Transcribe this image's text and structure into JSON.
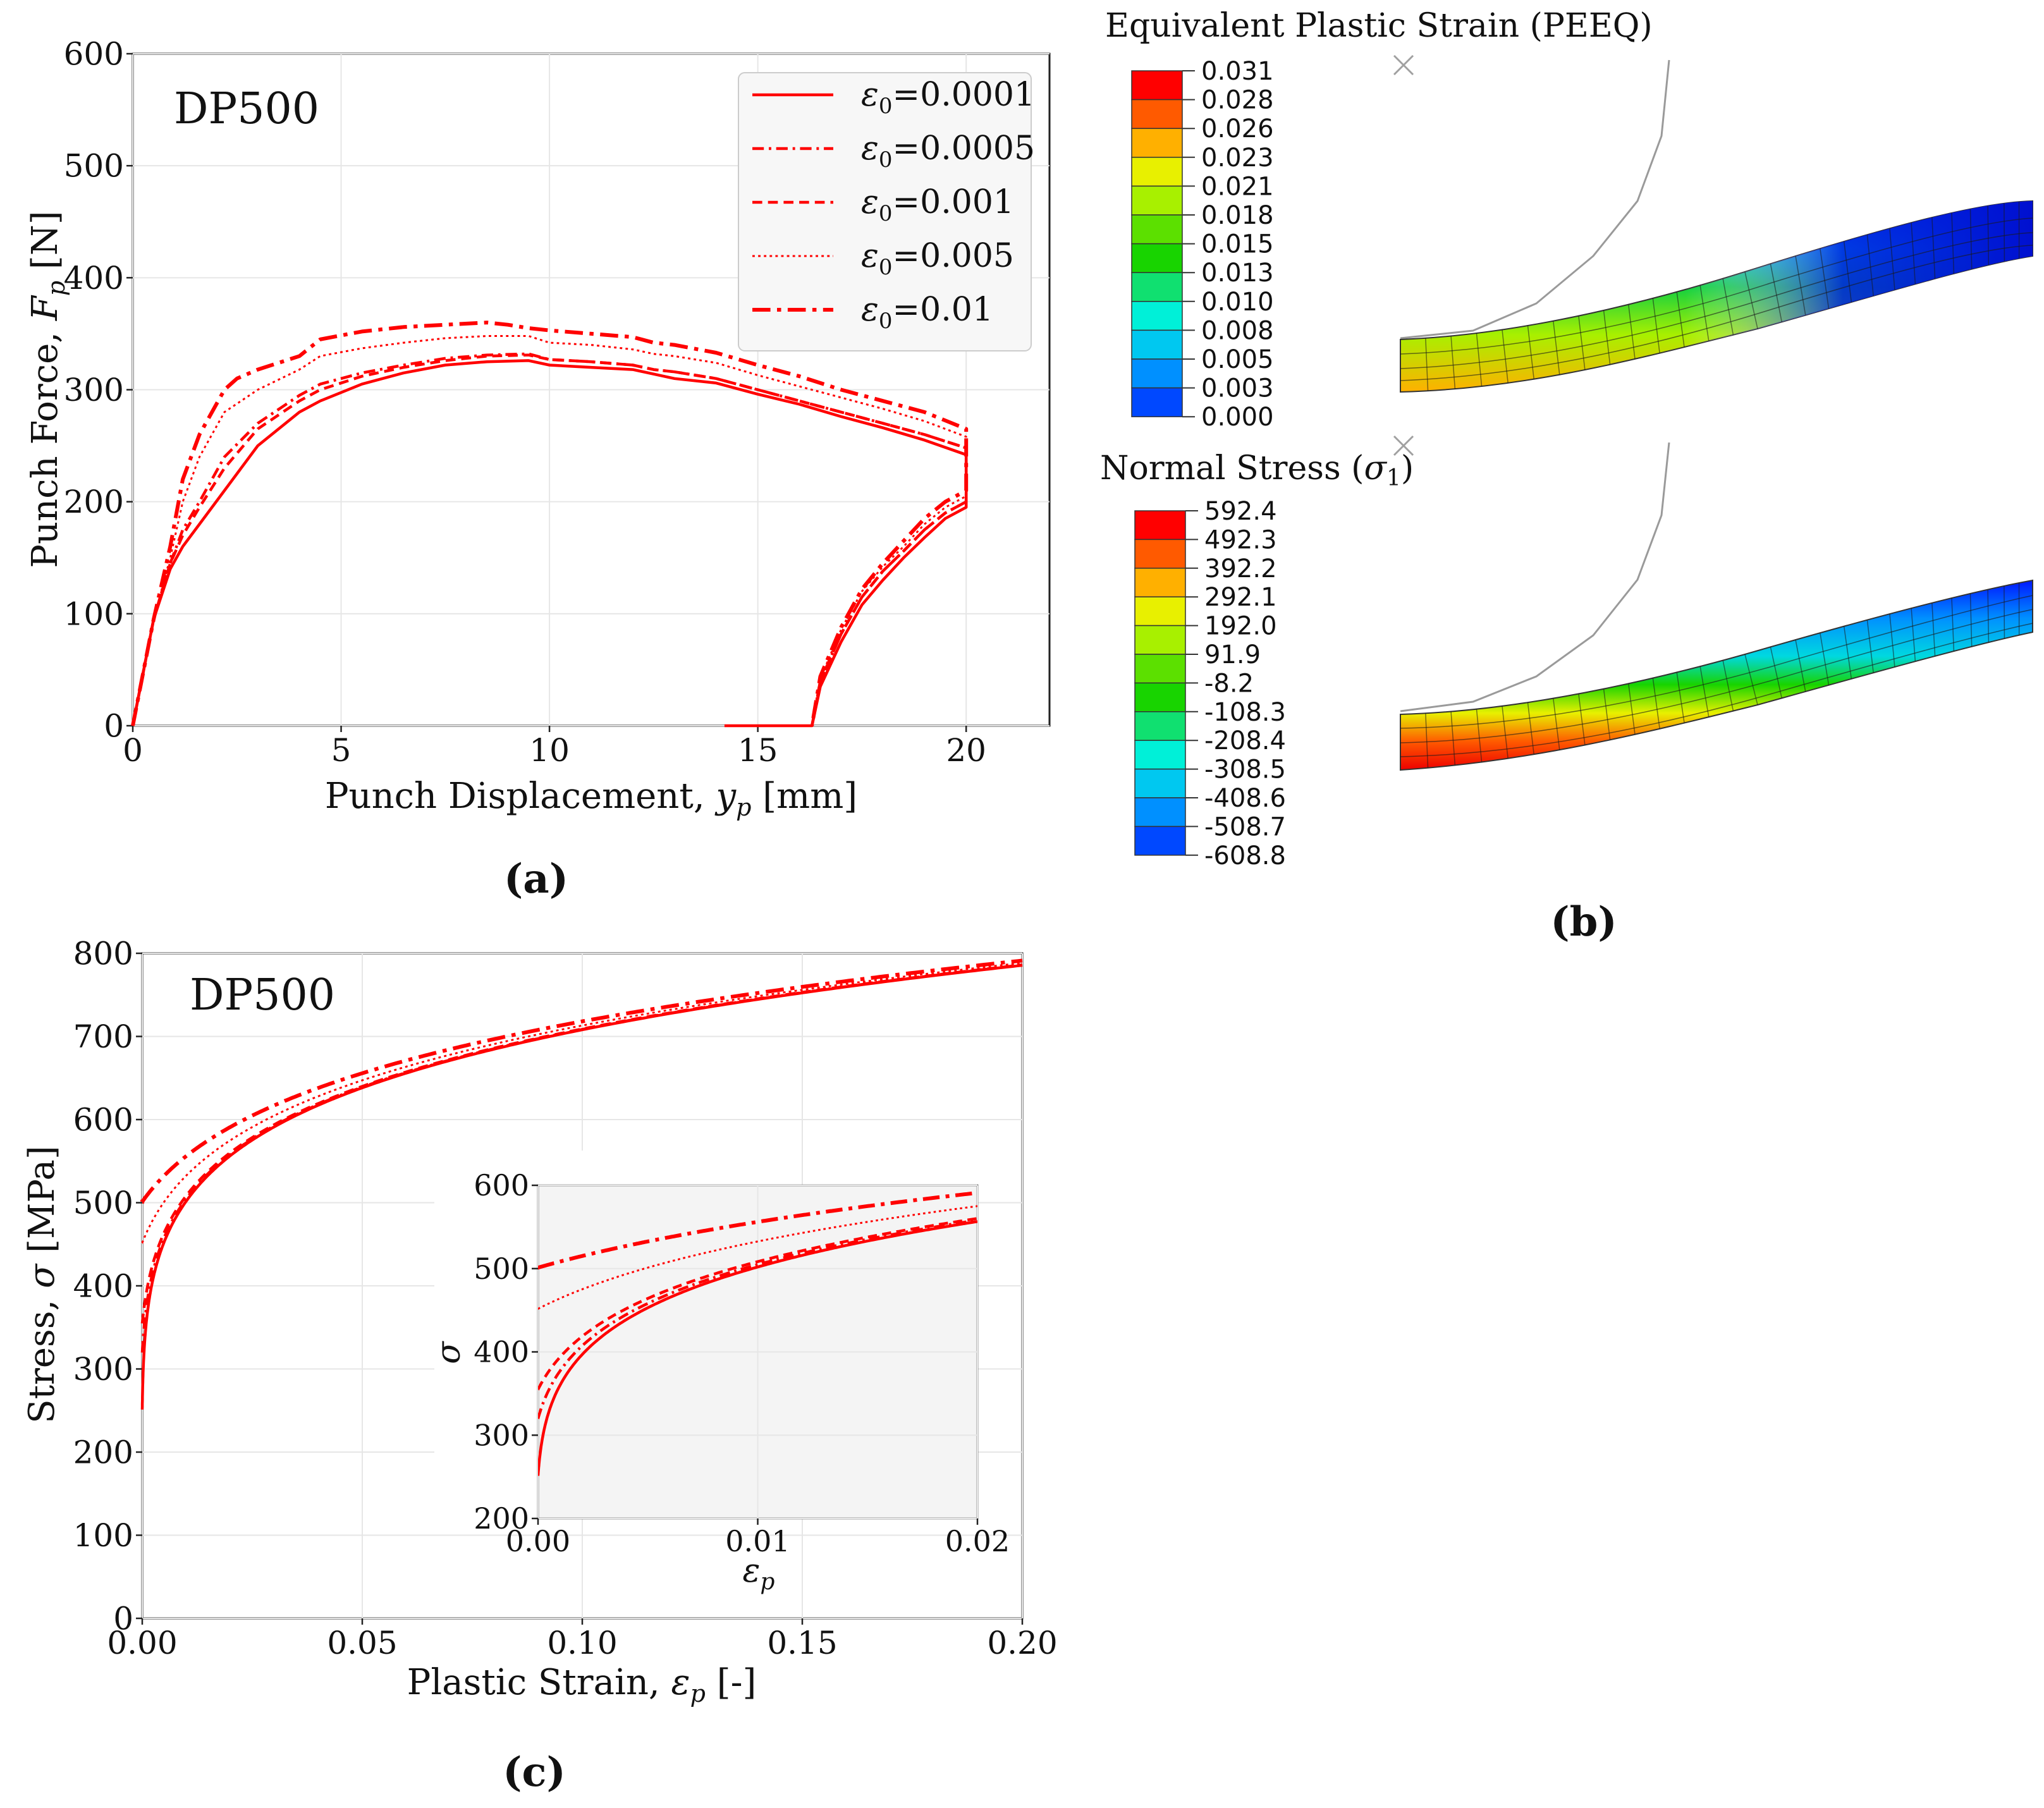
{
  "colors": {
    "curve": "#ff0000",
    "grid": "#e6e6e6",
    "frame": "#222222",
    "legend_bg": "#f7f7f7",
    "inset_bg": "#f4f4f4",
    "wire": "#9a9a9a"
  },
  "panels": {
    "a": "(a)",
    "b": "(b)",
    "c": "(c)"
  },
  "series_styles": [
    {
      "name": "ε0=0.0001",
      "dash": "solid"
    },
    {
      "name": "ε0=0.0005",
      "dash": "dashdot-fine"
    },
    {
      "name": "ε0=0.001",
      "dash": "dashed"
    },
    {
      "name": "ε0=0.005",
      "dash": "dotted"
    },
    {
      "name": "ε0=0.01",
      "dash": "dashdot-heavy"
    }
  ],
  "chart_data": [
    {
      "type": "line",
      "id": "force_displacement",
      "annotation": "DP500",
      "xlabel_prefix": "Punch Displacement, ",
      "xlabel_var": "y",
      "xlabel_sub": "p",
      "xlabel_suffix": " [mm]",
      "ylabel_prefix": "Punch Force, ",
      "ylabel_var": "F",
      "ylabel_sub": "p",
      "ylabel_suffix": " [N]",
      "xlim": [
        0,
        22
      ],
      "ylim": [
        0,
        600
      ],
      "xticks": [
        0,
        5,
        10,
        15,
        20
      ],
      "yticks": [
        0,
        100,
        200,
        300,
        400,
        500,
        600
      ],
      "legend": {
        "position": "top-right",
        "entries": [
          {
            "sym": "ε",
            "sub": "0",
            "text": "=0.0001"
          },
          {
            "sym": "ε",
            "sub": "0",
            "text": "=0.0005"
          },
          {
            "sym": "ε",
            "sub": "0",
            "text": "=0.001"
          },
          {
            "sym": "ε",
            "sub": "0",
            "text": "=0.005"
          },
          {
            "sym": "ε",
            "sub": "0",
            "text": "=0.01"
          }
        ]
      },
      "series": [
        {
          "name": "ε0=0.0001",
          "x": [
            0,
            0.5,
            0.9,
            1.2,
            1.6,
            2.2,
            3,
            4,
            4.5,
            5.5,
            6.5,
            7.5,
            8.5,
            9.5,
            10,
            11,
            12,
            12.5,
            13,
            14,
            15,
            16,
            17,
            18,
            19,
            20,
            20,
            20,
            20,
            19.5,
            19,
            18.5,
            18,
            17.5,
            17,
            16.5,
            16.3,
            16,
            15,
            14.2
          ],
          "y": [
            0,
            95,
            140,
            160,
            180,
            210,
            250,
            280,
            290,
            305,
            315,
            322,
            325,
            326,
            322,
            320,
            318,
            314,
            310,
            306,
            296,
            287,
            276,
            266,
            255,
            242,
            220,
            200,
            195,
            185,
            168,
            150,
            130,
            108,
            75,
            35,
            0,
            0,
            0,
            0
          ]
        },
        {
          "name": "ε0=0.0005",
          "x": [
            0,
            0.5,
            0.9,
            1.2,
            1.6,
            2.2,
            3,
            4,
            4.5,
            5.5,
            6.5,
            7.5,
            8.5,
            9.5,
            10,
            11,
            12,
            12.5,
            13,
            14,
            15,
            16,
            17,
            18,
            19,
            20,
            20,
            20,
            20,
            19.5,
            19,
            18.5,
            18,
            17.5,
            17,
            16.5,
            16.3
          ],
          "y": [
            0,
            95,
            145,
            175,
            200,
            240,
            270,
            295,
            305,
            315,
            322,
            328,
            331,
            332,
            327,
            325,
            322,
            318,
            316,
            310,
            300,
            290,
            280,
            270,
            260,
            248,
            225,
            205,
            200,
            190,
            175,
            156,
            138,
            115,
            82,
            40,
            0
          ]
        },
        {
          "name": "ε0=0.001",
          "x": [
            0,
            0.5,
            0.9,
            1.2,
            1.6,
            2.2,
            3,
            4,
            4.5,
            5.5,
            6.5,
            7.5,
            8.5,
            9.5,
            10,
            11,
            12,
            12.5,
            13,
            14,
            15,
            16,
            17,
            18,
            19,
            20,
            20,
            20,
            20,
            19.5,
            19,
            18.5,
            18,
            17.5,
            17,
            16.5,
            16.3
          ],
          "y": [
            0,
            95,
            145,
            170,
            195,
            230,
            265,
            290,
            300,
            312,
            320,
            326,
            330,
            331,
            327,
            325,
            322,
            318,
            316,
            310,
            300,
            290,
            280,
            270,
            260,
            248,
            225,
            205,
            200,
            190,
            175,
            156,
            138,
            115,
            82,
            40,
            0
          ]
        },
        {
          "name": "ε0=0.005",
          "x": [
            0,
            0.5,
            0.9,
            1.2,
            1.6,
            2.2,
            3,
            4,
            4.5,
            5.5,
            6.5,
            7.5,
            8.5,
            9.5,
            10,
            11,
            12,
            12.5,
            13,
            14,
            15,
            16,
            17,
            18,
            19,
            20,
            20,
            20,
            20,
            19.5,
            19,
            18.5,
            18,
            17.5,
            17,
            16.5,
            16.3
          ],
          "y": [
            0,
            95,
            150,
            200,
            240,
            280,
            300,
            318,
            330,
            337,
            342,
            346,
            348,
            348,
            342,
            340,
            336,
            332,
            330,
            324,
            313,
            303,
            293,
            283,
            272,
            258,
            235,
            212,
            205,
            195,
            180,
            160,
            142,
            120,
            86,
            42,
            0
          ]
        },
        {
          "name": "ε0=0.01",
          "x": [
            0,
            0.5,
            0.9,
            1.2,
            1.6,
            2.2,
            2.5,
            3,
            4,
            4.5,
            5.5,
            6.5,
            7.5,
            8.5,
            9,
            9.5,
            10,
            11,
            12,
            12.5,
            13,
            14,
            15,
            16,
            17,
            18,
            19,
            20,
            20,
            20,
            20,
            19.5,
            19,
            18.5,
            18,
            17.5,
            17,
            16.5,
            16.3
          ],
          "y": [
            0,
            95,
            160,
            220,
            260,
            300,
            310,
            318,
            330,
            345,
            352,
            356,
            358,
            360,
            358,
            355,
            353,
            350,
            347,
            342,
            340,
            333,
            322,
            312,
            300,
            290,
            280,
            265,
            240,
            218,
            210,
            200,
            185,
            165,
            145,
            122,
            88,
            44,
            0
          ]
        }
      ]
    },
    {
      "type": "line",
      "id": "flow_stress",
      "annotation": "DP500",
      "xlabel_prefix": "Plastic Strain, ",
      "xlabel_var": "ε",
      "xlabel_sub": "p",
      "xlabel_suffix": " [-]",
      "ylabel_prefix": "Stress, ",
      "ylabel_var": "σ",
      "ylabel_sub": "",
      "ylabel_suffix": " [MPa]",
      "xlim": [
        0,
        0.2
      ],
      "ylim": [
        0,
        800
      ],
      "xticks": [
        "0.00",
        "0.05",
        "0.10",
        "0.15",
        "0.20"
      ],
      "yticks": [
        0,
        100,
        200,
        300,
        400,
        500,
        600,
        700,
        800
      ],
      "series": [
        {
          "name": "ε0=0.0001",
          "eps0": 0.0001,
          "K": 1000,
          "n": 0.15
        },
        {
          "name": "ε0=0.0005",
          "eps0": 0.0005,
          "K": 1000,
          "n": 0.15
        },
        {
          "name": "ε0=0.001",
          "eps0": 0.001,
          "K": 1000,
          "n": 0.15
        },
        {
          "name": "ε0=0.005",
          "eps0": 0.005,
          "K": 1000,
          "n": 0.15
        },
        {
          "name": "ε0=0.01",
          "eps0": 0.01,
          "K": 1000,
          "n": 0.15
        }
      ],
      "inset": {
        "xlim": [
          0,
          0.02
        ],
        "ylim": [
          200,
          600
        ],
        "xticks": [
          "0.00",
          "0.01",
          "0.02"
        ],
        "yticks": [
          200,
          300,
          400,
          500,
          600
        ],
        "xlabel_var": "ε",
        "xlabel_sub": "p",
        "ylabel": "σ"
      }
    },
    {
      "type": "heatmap",
      "id": "fe_contours",
      "plots": [
        {
          "title": "Equivalent Plastic Strain (PEEQ)",
          "legend_values": [
            "0.031",
            "0.028",
            "0.026",
            "0.023",
            "0.021",
            "0.018",
            "0.015",
            "0.013",
            "0.010",
            "0.008",
            "0.005",
            "0.003",
            "0.000"
          ],
          "legend_colors": [
            "#ff0000",
            "#ff5a00",
            "#ffb000",
            "#e8f000",
            "#a8f000",
            "#5ce000",
            "#18d400",
            "#10e070",
            "#00f0d8",
            "#00c8f0",
            "#0090ff",
            "#0048ff",
            "#0000ff"
          ]
        },
        {
          "title_prefix": "Normal Stress (",
          "title_var": "σ",
          "title_sub": "1",
          "title_suffix": ")",
          "legend_values": [
            "592.4",
            "492.3",
            "392.2",
            "292.1",
            "192.0",
            "91.9",
            "-8.2",
            "-108.3",
            "-208.4",
            "-308.5",
            "-408.6",
            "-508.7",
            "-608.8"
          ],
          "legend_colors": [
            "#ff0000",
            "#ff5a00",
            "#ffb000",
            "#e8f000",
            "#a8f000",
            "#5ce000",
            "#18d400",
            "#10e070",
            "#00f0d8",
            "#00c8f0",
            "#0090ff",
            "#0048ff",
            "#0000ff"
          ]
        }
      ]
    }
  ]
}
